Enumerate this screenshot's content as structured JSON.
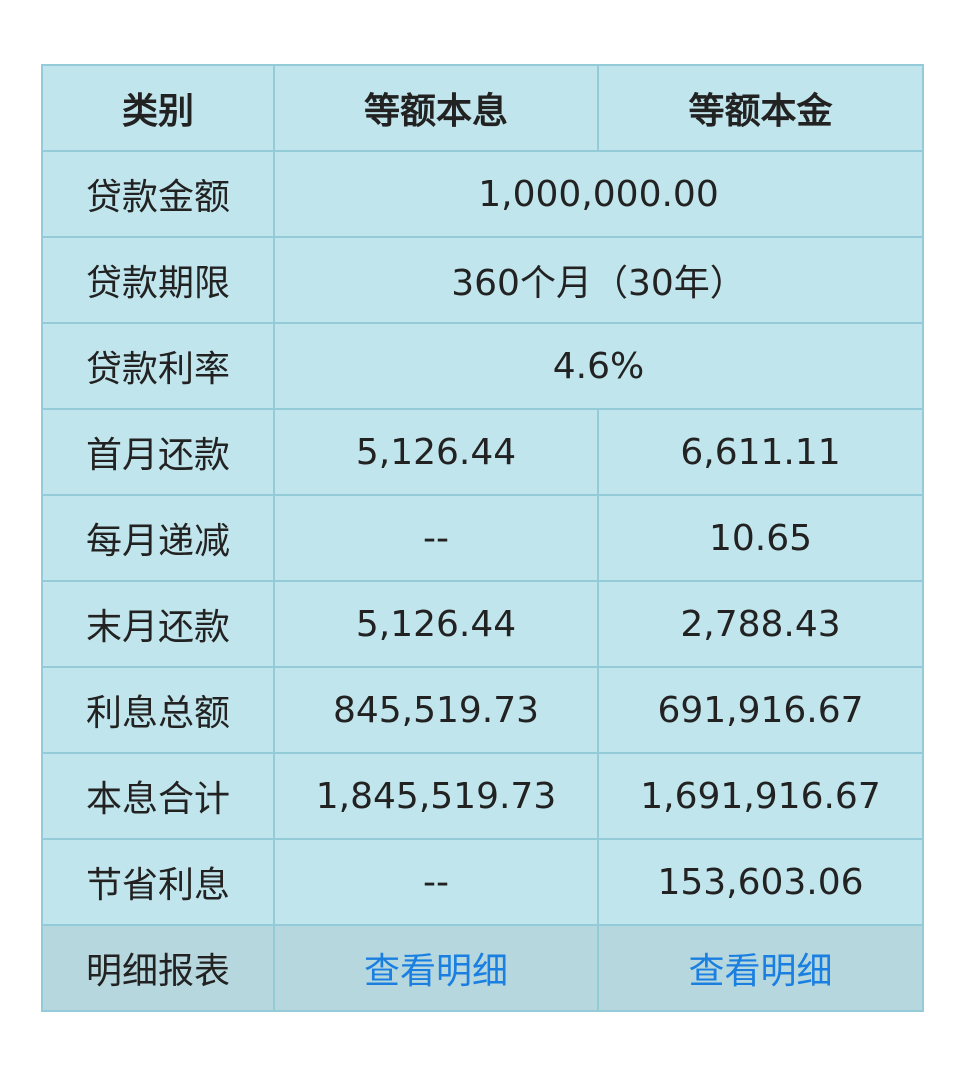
{
  "header": {
    "category": "类别",
    "col1": "等额本息",
    "col2": "等额本金"
  },
  "rows": [
    {
      "label": "贷款金额",
      "merged": "1,000,000.00"
    },
    {
      "label": "贷款期限",
      "merged": "360个月（30年）"
    },
    {
      "label": "贷款利率",
      "merged": "4.6%"
    },
    {
      "label": "首月还款",
      "v1": "5,126.44",
      "v2": "6,611.11"
    },
    {
      "label": "每月递减",
      "v1": "--",
      "v2": "10.65"
    },
    {
      "label": "末月还款",
      "v1": "5,126.44",
      "v2": "2,788.43"
    },
    {
      "label": "利息总额",
      "v1": "845,519.73",
      "v2": "691,916.67"
    },
    {
      "label": "本息合计",
      "v1": "1,845,519.73",
      "v2": "1,691,916.67"
    },
    {
      "label": "节省利息",
      "v1": "--",
      "v2": "153,603.06"
    }
  ],
  "detail": {
    "label": "明细报表",
    "link1": "查看明细",
    "link2": "查看明细"
  },
  "colors": {
    "cell_bg": "#c1e5ec",
    "border": "#93ccd8",
    "last_row_bg": "#b5d7dd",
    "link": "#1a7fe0"
  }
}
